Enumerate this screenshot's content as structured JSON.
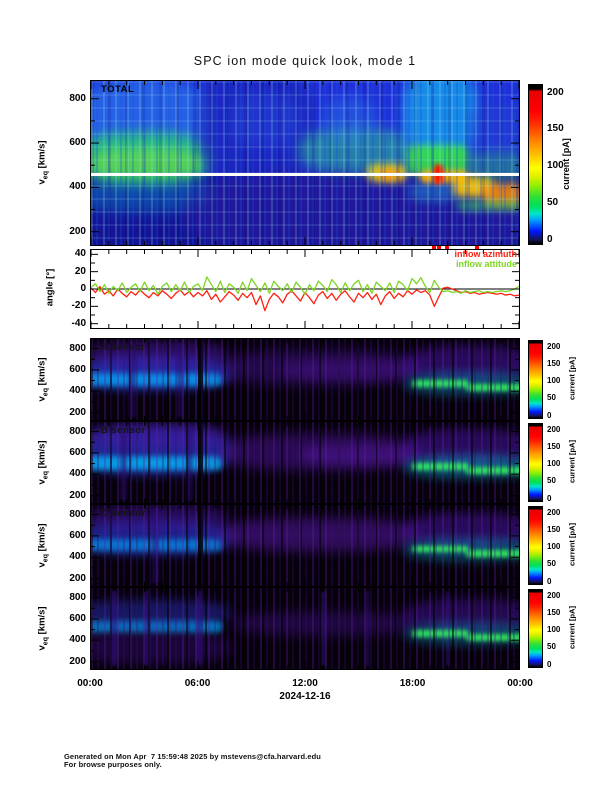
{
  "title": "SPC ion mode quick look, mode 1",
  "date_label": "2024-12-16",
  "x_tick_labels": [
    "00:00",
    "06:00",
    "12:00",
    "18:00",
    "00:00"
  ],
  "colorbar": {
    "label": "current [pA]",
    "ticks": [
      0,
      50,
      100,
      150,
      200
    ],
    "max_value": 200
  },
  "legend": {
    "azimuth": {
      "label": "inflow azimuth",
      "color": "#ff1f12"
    },
    "attitude": {
      "label": "inflow attitude",
      "color": "#7cd622"
    }
  },
  "footer": {
    "line1": "Generated on Mon Apr  7 15:59:48 2025 by mstevens@cfa.harvard.edu",
    "line2": "For browse purposes only."
  },
  "chart_data": [
    {
      "type": "heatmap",
      "name": "total-current-spectrogram",
      "label": "TOTAL",
      "ylabel": "v_eq [km/s]",
      "yticks": [
        200,
        400,
        600,
        800
      ],
      "yrange": [
        140,
        880
      ],
      "xrange_hours": [
        0,
        24
      ],
      "units": "current [pA]",
      "white_line_v": 460,
      "flag_times_hours": [
        19.2,
        19.5,
        19.9,
        21.6
      ],
      "features": [
        [
          0,
          6.3,
          560,
          860,
          "#2f9cf2",
          0.45,
          6
        ],
        [
          0,
          6.3,
          430,
          630,
          "#27dd5f",
          0.7,
          6
        ],
        [
          0.2,
          5.8,
          450,
          565,
          "#7ced35",
          0.55,
          5
        ],
        [
          0,
          6.3,
          300,
          430,
          "#00c2c8",
          0.28,
          6
        ],
        [
          6.3,
          12.2,
          455,
          870,
          "#1b21b2",
          0.6,
          5
        ],
        [
          6.3,
          24,
          150,
          450,
          "#2d1a9e",
          0.5,
          5
        ],
        [
          8,
          11.5,
          600,
          800,
          "#2a50de",
          0.35,
          6
        ],
        [
          12,
          17.6,
          480,
          650,
          "#2acd7e",
          0.5,
          6
        ],
        [
          13.2,
          15.8,
          620,
          790,
          "#2f8ae6",
          0.35,
          6
        ],
        [
          15.5,
          17.7,
          425,
          505,
          "#ffe000",
          0.8,
          4
        ],
        [
          16.1,
          17.4,
          435,
          485,
          "#ff9000",
          0.8,
          3
        ],
        [
          17.7,
          21.4,
          560,
          870,
          "#12c8f0",
          0.6,
          6
        ],
        [
          18,
          20.6,
          340,
          420,
          "#20b8e0",
          0.4,
          5
        ],
        [
          17.7,
          21.2,
          455,
          590,
          "#38e83c",
          0.85,
          4
        ],
        [
          18.4,
          21.2,
          420,
          478,
          "#ffb400",
          0.9,
          3
        ],
        [
          19.25,
          19.75,
          415,
          505,
          "#ff0800",
          0.95,
          2
        ],
        [
          20.3,
          22.6,
          358,
          452,
          "#ffc800",
          0.9,
          4
        ],
        [
          22,
          24,
          318,
          420,
          "#ff8c00",
          0.85,
          4
        ],
        [
          20.5,
          24,
          295,
          345,
          "#3fe050",
          0.55,
          4
        ],
        [
          21.4,
          24,
          440,
          560,
          "#28c060",
          0.45,
          5
        ],
        [
          21.4,
          24,
          560,
          760,
          "#2340cc",
          0.5,
          6
        ]
      ]
    },
    {
      "type": "line",
      "name": "inflow-angles",
      "ylabel": "angle [°]",
      "yticks": [
        -40,
        -20,
        0,
        20,
        40
      ],
      "yrange": [
        -45,
        45
      ],
      "xrange_hours": [
        0,
        24
      ],
      "zero_line": 0,
      "series": [
        {
          "name": "inflow azimuth",
          "color": "#ff1f12",
          "values": [
            1,
            -4,
            3,
            -6,
            -2,
            -8,
            0,
            -5,
            -9,
            -3,
            -7,
            -1,
            -6,
            -10,
            -4,
            -8,
            -2,
            -6,
            -11,
            -5,
            -1,
            -7,
            -3,
            -9,
            -4,
            -8,
            -2,
            -12,
            -6,
            -15,
            -9,
            -3,
            -7,
            -13,
            -5,
            -10,
            -4,
            -18,
            -8,
            -25,
            -12,
            -5,
            -9,
            -16,
            -6,
            -2,
            -8,
            -14,
            -4,
            -10,
            -17,
            -7,
            -3,
            -11,
            -5,
            -13,
            -6,
            -2,
            -9,
            -15,
            -5,
            -10,
            -4,
            -12,
            -6,
            -18,
            -8,
            -3,
            -11,
            -5,
            -9,
            -2,
            -6,
            -1,
            -4,
            -2,
            -7,
            -20,
            -9,
            1,
            2,
            0,
            -2,
            -4,
            -3,
            -5,
            -4,
            -6,
            -5,
            -4,
            -5,
            -6,
            -5,
            -7,
            -6,
            -8,
            -7
          ]
        },
        {
          "name": "inflow attitude",
          "color": "#7cd622",
          "values": [
            2,
            6,
            -3,
            5,
            -5,
            3,
            -2,
            7,
            -4,
            2,
            6,
            -3,
            8,
            -2,
            4,
            -6,
            3,
            7,
            -3,
            5,
            -2,
            8,
            -4,
            3,
            6,
            -2,
            14,
            5,
            -3,
            9,
            -4,
            6,
            2,
            -5,
            8,
            -2,
            12,
            4,
            -3,
            7,
            -5,
            9,
            3,
            -2,
            6,
            -4,
            8,
            2,
            -6,
            5,
            -2,
            9,
            4,
            -3,
            11,
            5,
            -4,
            7,
            -2,
            6,
            10,
            -3,
            5,
            -5,
            8,
            3,
            -2,
            7,
            -4,
            9,
            5,
            -2,
            12,
            6,
            13,
            3,
            -4,
            10,
            2,
            -3,
            -2,
            -4,
            -3,
            -5,
            -2,
            -4,
            -3,
            -2,
            -4,
            -3,
            -4,
            -3,
            -2,
            -3,
            -2,
            0,
            3
          ]
        }
      ]
    },
    {
      "type": "heatmap",
      "name": "a-sensor-spectrogram",
      "label": "A sensor",
      "label_color": "#141414",
      "ylabel": "v_eq [km/s]",
      "yticks": [
        200,
        400,
        600,
        800
      ],
      "yrange": [
        130,
        890
      ],
      "xrange_hours": [
        0,
        24
      ],
      "units": "current [pA]",
      "features": [
        [
          0,
          7.4,
          440,
          700,
          "#2e46ff",
          0.6,
          5
        ],
        [
          0,
          7.4,
          450,
          570,
          "#00b4ff",
          0.7,
          3
        ],
        [
          0.3,
          7.2,
          640,
          850,
          "#4a18a8",
          0.5,
          5
        ],
        [
          2.1,
          2.5,
          150,
          850,
          "#2a0d6e",
          0.45,
          1
        ],
        [
          4.8,
          5.2,
          150,
          850,
          "#2a0d6e",
          0.45,
          1
        ],
        [
          6.02,
          6.3,
          130,
          890,
          "#000000",
          0.85,
          0
        ],
        [
          7.6,
          17.9,
          490,
          760,
          "#3d1184",
          0.5,
          6
        ],
        [
          11,
          17.9,
          520,
          680,
          "#4b1490",
          0.45,
          5
        ],
        [
          18,
          24,
          520,
          800,
          "#45139c",
          0.55,
          5
        ],
        [
          18,
          24,
          380,
          560,
          "#00b4d8",
          0.4,
          5
        ],
        [
          18,
          21.2,
          440,
          505,
          "#32f060",
          0.92,
          2
        ],
        [
          21,
          24,
          400,
          465,
          "#32f060",
          0.92,
          2
        ]
      ]
    },
    {
      "type": "heatmap",
      "name": "b-sensor-spectrogram",
      "label": "B sensor",
      "label_color": "#141414",
      "ylabel": "v_eq [km/s]",
      "yticks": [
        200,
        400,
        600,
        800
      ],
      "yrange": [
        130,
        890
      ],
      "xrange_hours": [
        0,
        24
      ],
      "units": "current [pA]",
      "features": [
        [
          0,
          7.4,
          430,
          800,
          "#2e46ff",
          0.55,
          5
        ],
        [
          0,
          7.4,
          440,
          570,
          "#00c0ff",
          0.75,
          3
        ],
        [
          0.3,
          7.2,
          650,
          870,
          "#4a18a8",
          0.5,
          5
        ],
        [
          1.6,
          2.0,
          150,
          860,
          "#2a0d6e",
          0.45,
          1
        ],
        [
          5.3,
          5.7,
          150,
          860,
          "#2a0d6e",
          0.45,
          1
        ],
        [
          6.02,
          6.3,
          130,
          890,
          "#000000",
          0.85,
          0
        ],
        [
          7.6,
          17.9,
          470,
          750,
          "#47138e",
          0.55,
          6
        ],
        [
          12,
          17.9,
          500,
          660,
          "#52189c",
          0.5,
          5
        ],
        [
          18,
          24,
          510,
          800,
          "#45139c",
          0.55,
          5
        ],
        [
          18,
          24,
          380,
          560,
          "#00c0e0",
          0.45,
          5
        ],
        [
          18,
          21.2,
          440,
          505,
          "#32f060",
          0.92,
          2
        ],
        [
          21,
          24,
          400,
          465,
          "#32f060",
          0.92,
          2
        ]
      ]
    },
    {
      "type": "heatmap",
      "name": "c-sensor-spectrogram",
      "label": "C sensor",
      "label_color": "#141414",
      "ylabel": "v_eq [km/s]",
      "yticks": [
        200,
        400,
        600,
        800
      ],
      "yrange": [
        130,
        890
      ],
      "xrange_hours": [
        0,
        24
      ],
      "units": "current [pA]",
      "features": [
        [
          0,
          7.4,
          450,
          720,
          "#2a40f0",
          0.55,
          5
        ],
        [
          0,
          7.4,
          460,
          575,
          "#00a8ff",
          0.6,
          3
        ],
        [
          0.3,
          7.2,
          660,
          870,
          "#43159e",
          0.5,
          5
        ],
        [
          3.4,
          3.8,
          150,
          860,
          "#2a0d6e",
          0.45,
          1
        ],
        [
          6.02,
          6.3,
          130,
          890,
          "#000000",
          0.85,
          0
        ],
        [
          7.6,
          17.9,
          480,
          740,
          "#4c1594",
          0.6,
          6
        ],
        [
          18,
          24,
          510,
          790,
          "#45139c",
          0.55,
          5
        ],
        [
          18,
          24,
          385,
          565,
          "#00b4d8",
          0.4,
          5
        ],
        [
          18,
          21.2,
          445,
          510,
          "#32f060",
          0.92,
          2
        ],
        [
          21,
          24,
          405,
          470,
          "#32f060",
          0.92,
          2
        ]
      ]
    },
    {
      "type": "heatmap",
      "name": "d-sensor-spectrogram",
      "label": "",
      "label_color": "#101010",
      "ylabel": "v_eq [km/s]",
      "yticks": [
        200,
        400,
        600,
        800
      ],
      "yrange": [
        130,
        890
      ],
      "xrange_hours": [
        0,
        24
      ],
      "units": "current [pA]",
      "features": [
        [
          0,
          7.4,
          470,
          590,
          "#00a8ff",
          0.7,
          3
        ],
        [
          0,
          7.4,
          560,
          760,
          "#2a34c8",
          0.45,
          5
        ],
        [
          0,
          7.4,
          200,
          460,
          "#3a0e7c",
          0.4,
          5
        ],
        [
          1.1,
          1.45,
          160,
          870,
          "#31107e",
          0.55,
          1
        ],
        [
          3.0,
          3.3,
          160,
          870,
          "#31107e",
          0.55,
          1
        ],
        [
          5.9,
          6.2,
          160,
          870,
          "#31107e",
          0.55,
          1
        ],
        [
          12.9,
          13.15,
          160,
          860,
          "#31107e",
          0.55,
          1
        ],
        [
          15.4,
          15.6,
          160,
          860,
          "#31107e",
          0.55,
          1
        ],
        [
          19.9,
          20.1,
          160,
          860,
          "#31107e",
          0.55,
          1
        ],
        [
          8.5,
          17.9,
          470,
          650,
          "#390f78",
          0.5,
          6
        ],
        [
          18,
          24,
          500,
          760,
          "#3f1190",
          0.5,
          5
        ],
        [
          18,
          24,
          370,
          550,
          "#00b4d8",
          0.35,
          5
        ],
        [
          18,
          21.2,
          430,
          495,
          "#32f060",
          0.9,
          2
        ],
        [
          21,
          24,
          395,
          460,
          "#32f060",
          0.9,
          2
        ]
      ]
    }
  ]
}
